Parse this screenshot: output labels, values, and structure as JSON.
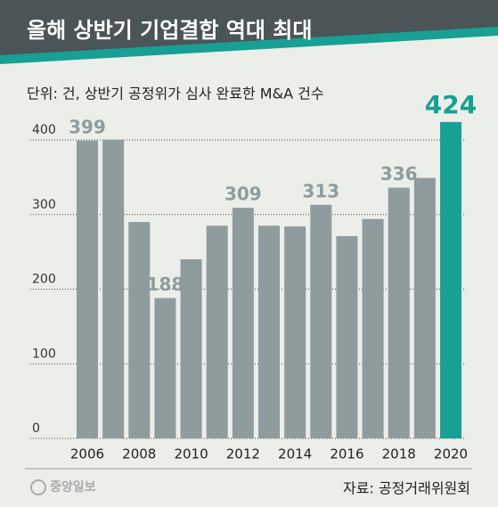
{
  "chart_data": {
    "type": "bar",
    "title": "올해 상반기 기업결합 역대 최대",
    "subtitle": "단위: 건, 상반기 공정위가 심사 완료한 M&A 건수",
    "source": "자료: 공정거래위원회",
    "logo": "중앙일보",
    "categories": [
      "2006",
      null,
      "2008",
      null,
      "2010",
      null,
      "2012",
      null,
      "2014",
      null,
      "2016",
      null,
      "2018",
      null,
      "2020"
    ],
    "values": [
      399,
      400,
      290,
      188,
      240,
      285,
      309,
      285,
      284,
      313,
      271,
      294,
      336,
      349,
      424
    ],
    "value_labels": [
      399,
      null,
      null,
      188,
      null,
      null,
      309,
      null,
      null,
      313,
      null,
      null,
      336,
      null,
      424
    ],
    "colors": [
      "#8e9c9e",
      "#8e9c9e",
      "#8e9c9e",
      "#8e9c9e",
      "#8e9c9e",
      "#8e9c9e",
      "#8e9c9e",
      "#8e9c9e",
      "#8e9c9e",
      "#8e9c9e",
      "#8e9c9e",
      "#8e9c9e",
      "#8e9c9e",
      "#8e9c9e",
      "#17a093"
    ],
    "ylim": [
      0,
      440
    ],
    "yticks": [
      0,
      100,
      200,
      300,
      400
    ],
    "grid": true
  }
}
